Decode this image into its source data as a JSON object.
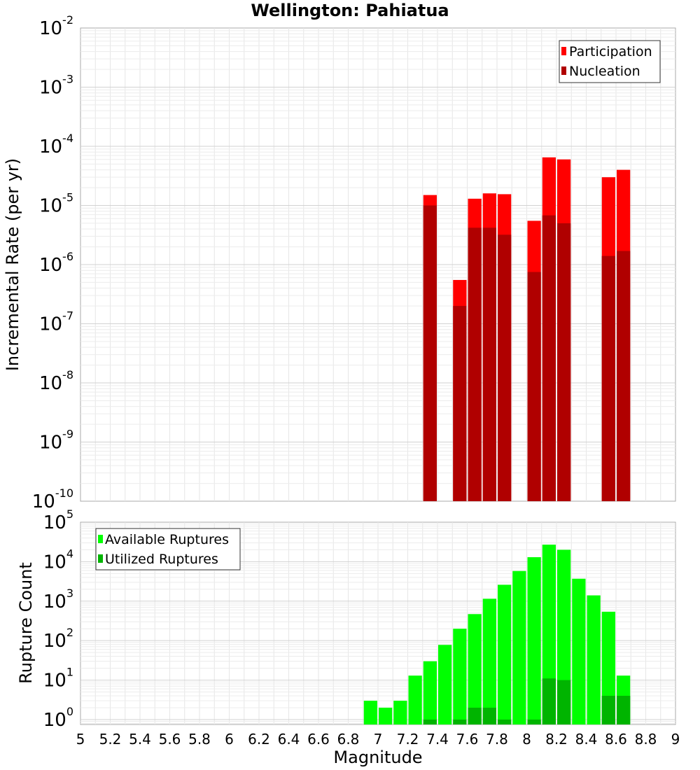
{
  "chart_data": [
    {
      "type": "bar",
      "title": "Wellington: Pahiatua",
      "xlabel": "",
      "ylabel": "Incremental Rate (per yr)",
      "y_scale": "log",
      "ylim": [
        1e-10,
        0.01
      ],
      "xlim": [
        5,
        9
      ],
      "bin_width": 0.1,
      "y_ticks": [
        {
          "base": "10",
          "exp": "-10"
        },
        {
          "base": "10",
          "exp": "-9"
        },
        {
          "base": "10",
          "exp": "-8"
        },
        {
          "base": "10",
          "exp": "-7"
        },
        {
          "base": "10",
          "exp": "-6"
        },
        {
          "base": "10",
          "exp": "-5"
        },
        {
          "base": "10",
          "exp": "-4"
        },
        {
          "base": "10",
          "exp": "-3"
        },
        {
          "base": "10",
          "exp": "-2"
        }
      ],
      "legend_position": "top-right",
      "series": [
        {
          "name": "Participation",
          "color": "#ff0000",
          "points": [
            {
              "x": 7.35,
              "y": 1.5e-05
            },
            {
              "x": 7.55,
              "y": 5.5e-07
            },
            {
              "x": 7.65,
              "y": 1.3e-05
            },
            {
              "x": 7.75,
              "y": 1.6e-05
            },
            {
              "x": 7.85,
              "y": 1.55e-05
            },
            {
              "x": 8.05,
              "y": 5.5e-06
            },
            {
              "x": 8.15,
              "y": 6.5e-05
            },
            {
              "x": 8.25,
              "y": 6e-05
            },
            {
              "x": 8.55,
              "y": 3e-05
            },
            {
              "x": 8.65,
              "y": 4e-05
            }
          ]
        },
        {
          "name": "Nucleation",
          "color": "#b00000",
          "points": [
            {
              "x": 7.35,
              "y": 1e-05
            },
            {
              "x": 7.55,
              "y": 2e-07
            },
            {
              "x": 7.65,
              "y": 4.2e-06
            },
            {
              "x": 7.75,
              "y": 4.2e-06
            },
            {
              "x": 7.85,
              "y": 3.2e-06
            },
            {
              "x": 8.05,
              "y": 7.5e-07
            },
            {
              "x": 8.15,
              "y": 6.8e-06
            },
            {
              "x": 8.25,
              "y": 5e-06
            },
            {
              "x": 8.55,
              "y": 1.4e-06
            },
            {
              "x": 8.65,
              "y": 1.7e-06
            }
          ]
        }
      ]
    },
    {
      "type": "bar",
      "xlabel": "Magnitude",
      "ylabel": "Rupture Count",
      "y_scale": "log",
      "ylim": [
        0.75,
        100000
      ],
      "xlim": [
        5,
        9
      ],
      "bin_width": 0.1,
      "x_ticks": [
        "5",
        "5.2",
        "5.4",
        "5.6",
        "5.8",
        "6",
        "6.2",
        "6.4",
        "6.6",
        "6.8",
        "7",
        "7.2",
        "7.4",
        "7.6",
        "7.8",
        "8",
        "8.2",
        "8.4",
        "8.6",
        "8.8",
        "9"
      ],
      "y_ticks": [
        {
          "base": "10",
          "exp": "0"
        },
        {
          "base": "10",
          "exp": "1"
        },
        {
          "base": "10",
          "exp": "2"
        },
        {
          "base": "10",
          "exp": "3"
        },
        {
          "base": "10",
          "exp": "4"
        },
        {
          "base": "10",
          "exp": "5"
        }
      ],
      "legend_position": "top-left",
      "series": [
        {
          "name": "Available Ruptures",
          "color": "#00ff00",
          "points": [
            {
              "x": 6.95,
              "y": 3
            },
            {
              "x": 7.05,
              "y": 2
            },
            {
              "x": 7.15,
              "y": 3
            },
            {
              "x": 7.25,
              "y": 13
            },
            {
              "x": 7.35,
              "y": 30
            },
            {
              "x": 7.45,
              "y": 78
            },
            {
              "x": 7.55,
              "y": 200
            },
            {
              "x": 7.65,
              "y": 470
            },
            {
              "x": 7.75,
              "y": 1150
            },
            {
              "x": 7.85,
              "y": 2600
            },
            {
              "x": 7.95,
              "y": 5800
            },
            {
              "x": 8.05,
              "y": 13000
            },
            {
              "x": 8.15,
              "y": 27000
            },
            {
              "x": 8.25,
              "y": 20000
            },
            {
              "x": 8.35,
              "y": 3700
            },
            {
              "x": 8.45,
              "y": 1400
            },
            {
              "x": 8.55,
              "y": 540
            },
            {
              "x": 8.65,
              "y": 13
            }
          ]
        },
        {
          "name": "Utilized Ruptures",
          "color": "#00b400",
          "points": [
            {
              "x": 7.35,
              "y": 1
            },
            {
              "x": 7.55,
              "y": 1
            },
            {
              "x": 7.65,
              "y": 2
            },
            {
              "x": 7.75,
              "y": 2
            },
            {
              "x": 7.85,
              "y": 1
            },
            {
              "x": 8.05,
              "y": 1
            },
            {
              "x": 8.15,
              "y": 11
            },
            {
              "x": 8.25,
              "y": 10
            },
            {
              "x": 8.55,
              "y": 4
            },
            {
              "x": 8.65,
              "y": 4
            }
          ]
        }
      ]
    }
  ]
}
